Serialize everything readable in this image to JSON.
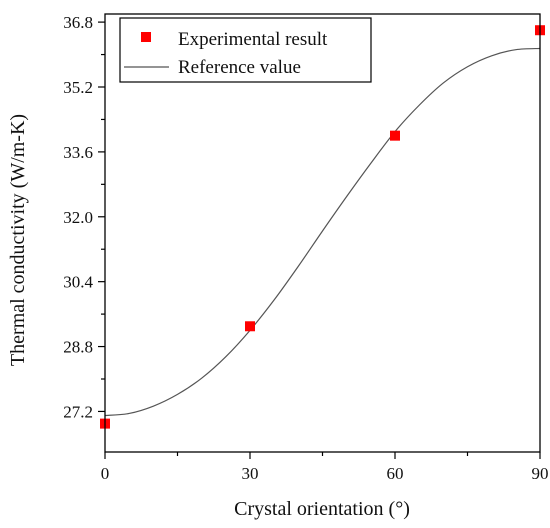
{
  "chart_data": {
    "type": "scatter",
    "xlabel": "Crystal orientation (°)",
    "ylabel": "Thermal conductivity (W/m-K)",
    "xlim": [
      0,
      90
    ],
    "ylim": [
      26.2,
      37.0
    ],
    "x_ticks": [
      0,
      30,
      60,
      90
    ],
    "x_tick_labels": [
      "0",
      "30",
      "60",
      "90"
    ],
    "y_ticks": [
      27.2,
      28.8,
      30.4,
      32.0,
      33.6,
      35.2,
      36.8
    ],
    "y_tick_labels": [
      "27.2",
      "28.8",
      "30.4",
      "32.0",
      "33.6",
      "35.2",
      "36.8"
    ],
    "grid": false,
    "legend_position": "top-right",
    "series": [
      {
        "name": "Experimental result",
        "type": "scatter",
        "marker": "square",
        "color": "#ff0000",
        "x": [
          0,
          30,
          60,
          90
        ],
        "y": [
          26.9,
          29.3,
          34.0,
          36.6
        ]
      },
      {
        "name": "Reference value",
        "type": "line",
        "color": "#555555",
        "x": [
          0,
          5,
          10,
          15,
          20,
          25,
          30,
          35,
          40,
          45,
          50,
          55,
          60,
          65,
          70,
          75,
          80,
          85,
          90
        ],
        "y": [
          27.1,
          27.15,
          27.33,
          27.62,
          28.02,
          28.55,
          29.2,
          29.95,
          30.78,
          31.65,
          32.5,
          33.32,
          34.1,
          34.75,
          35.3,
          35.7,
          35.97,
          36.12,
          36.15
        ]
      }
    ]
  }
}
